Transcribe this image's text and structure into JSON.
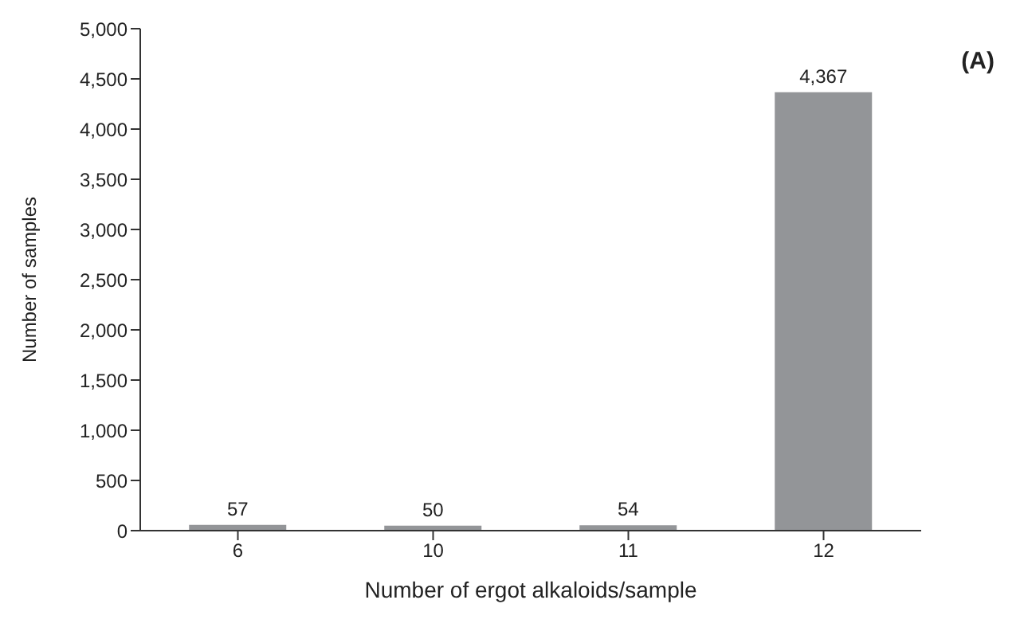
{
  "chart_data": {
    "type": "bar",
    "xlabel": "Number of ergot alkaloids/sample",
    "ylabel": "Number of samples",
    "categories": [
      "6",
      "10",
      "11",
      "12"
    ],
    "values": [
      57,
      50,
      54,
      4367
    ],
    "value_labels": [
      "57",
      "50",
      "54",
      "4,367"
    ],
    "color": "#939598",
    "ylim": [
      0,
      5000
    ],
    "yticks": [
      0,
      500,
      {
        "value": 1000,
        "label": "1,000"
      },
      {
        "value": 1500,
        "label": "1,500"
      },
      {
        "value": 2000,
        "label": "2,000"
      },
      {
        "value": 2500,
        "label": "2,500"
      },
      {
        "value": 3000,
        "label": "3,000"
      },
      {
        "value": 3500,
        "label": "3,500"
      },
      {
        "value": 4000,
        "label": "4,000"
      },
      {
        "value": 4500,
        "label": "4,500"
      },
      {
        "value": 5000,
        "label": "5,000"
      }
    ],
    "grid": false,
    "legend": false,
    "annotations": [
      "(A)"
    ]
  }
}
